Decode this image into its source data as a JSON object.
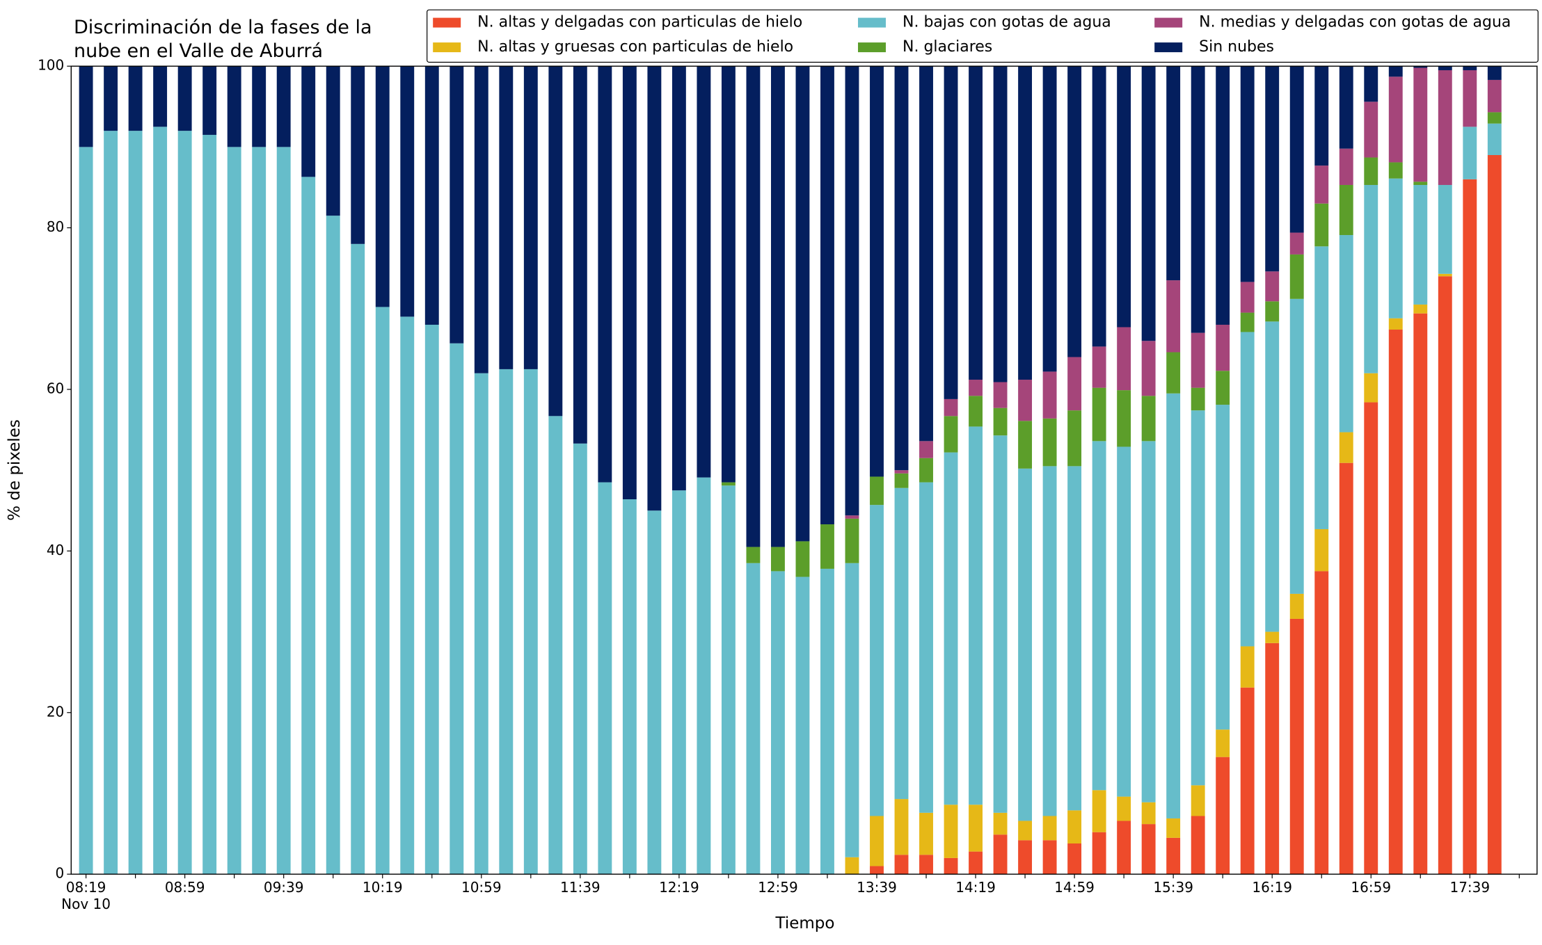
{
  "chart_data": {
    "type": "stacked_bar",
    "title": "Discriminación de la fases de la\nnube en el Valle de Aburrá",
    "x_label": "Tiempo",
    "y_label": "% de pixeles",
    "date_label": "Nov 10",
    "categories": [
      "08:19",
      null,
      null,
      null,
      "08:59",
      null,
      null,
      null,
      "09:39",
      null,
      null,
      null,
      "10:19",
      null,
      null,
      null,
      "10:59",
      null,
      null,
      null,
      "11:39",
      null,
      null,
      null,
      "12:19",
      null,
      null,
      null,
      "12:59",
      null,
      null,
      null,
      "13:39",
      null,
      null,
      null,
      "14:19",
      null,
      null,
      null,
      "14:59",
      null,
      null,
      null,
      "15:39",
      null,
      null,
      null,
      "16:19",
      null,
      null,
      null,
      "16:59",
      null,
      null,
      null,
      "17:39",
      null
    ],
    "series": [
      {
        "name": "N. altas y delgadas con particulas de hielo",
        "color": "#ee4b2b",
        "values": [
          0,
          0,
          0,
          0,
          0,
          0,
          0,
          0,
          0,
          0,
          0,
          0,
          0,
          0,
          0,
          0,
          0,
          0,
          0,
          0,
          0,
          0,
          0,
          0,
          0,
          0,
          0,
          0,
          0,
          0,
          0,
          0,
          1.0,
          2.4,
          2.4,
          2.0,
          2.8,
          4.9,
          4.2,
          4.2,
          3.8,
          5.2,
          6.6,
          6.2,
          4.5,
          7.2,
          14.5,
          23.1,
          28.6,
          31.6,
          37.5,
          50.9,
          58.4,
          67.4,
          69.4,
          74,
          86,
          89
        ]
      },
      {
        "name": "N. altas y gruesas con particulas de hielo",
        "color": "#e6b817",
        "values": [
          0,
          0,
          0,
          0,
          0,
          0,
          0,
          0,
          0,
          0,
          0,
          0,
          0,
          0,
          0,
          0,
          0,
          0,
          0,
          0,
          0,
          0,
          0,
          0,
          0,
          0,
          0,
          0,
          0,
          0,
          0,
          2.1,
          6.2,
          6.9,
          5.2,
          6.6,
          5.8,
          2.7,
          2.4,
          3.0,
          4.1,
          5.2,
          3.0,
          2.7,
          2.4,
          3.8,
          3.4,
          5.1,
          1.4,
          3.1,
          5.2,
          3.8,
          3.6,
          1.4,
          1.1,
          0.3,
          0,
          0
        ]
      },
      {
        "name": "N. bajas con gotas de agua",
        "color": "#66bdca",
        "values": [
          90,
          92,
          92,
          92.5,
          92,
          91.5,
          90,
          90,
          90,
          86.3,
          81.5,
          78,
          70.2,
          69,
          68,
          65.7,
          62,
          62.5,
          62.5,
          56.7,
          53.3,
          48.5,
          46.4,
          45,
          47.5,
          49.1,
          48.1,
          38.5,
          37.5,
          36.8,
          37.8,
          36.4,
          38.5,
          38.5,
          40.9,
          43.6,
          46.8,
          46.7,
          43.6,
          43.3,
          42.6,
          43.2,
          43.3,
          44.7,
          52.6,
          46.4,
          40.2,
          38.9,
          38.4,
          36.5,
          35,
          24.4,
          23.3,
          17.3,
          14.8,
          11.0,
          6.5,
          3.9
        ]
      },
      {
        "name": "N. glaciares",
        "color": "#5c9e2a",
        "values": [
          0,
          0,
          0,
          0,
          0,
          0,
          0,
          0,
          0,
          0,
          0,
          0,
          0,
          0,
          0,
          0,
          0,
          0,
          0,
          0,
          0,
          0,
          0,
          0,
          0,
          0,
          0.4,
          2.0,
          3.0,
          4.4,
          5.5,
          5.5,
          3.5,
          1.8,
          3.0,
          4.5,
          3.8,
          3.4,
          5.9,
          5.9,
          6.9,
          6.6,
          7.0,
          5.6,
          5.1,
          2.8,
          4.2,
          2.4,
          2.5,
          5.5,
          5.3,
          6.2,
          3.4,
          2.0,
          0.4,
          0,
          0,
          1.4
        ]
      },
      {
        "name": "N. medias y delgadas con gotas de agua",
        "color": "#a5457a",
        "values": [
          0,
          0,
          0,
          0,
          0,
          0,
          0,
          0,
          0,
          0,
          0,
          0,
          0,
          0,
          0,
          0,
          0,
          0,
          0,
          0,
          0,
          0,
          0,
          0,
          0,
          0,
          0,
          0,
          0,
          0,
          0,
          0.4,
          0,
          0.4,
          2.1,
          2.1,
          2.0,
          3.2,
          5.1,
          5.8,
          6.6,
          5.1,
          7.8,
          6.8,
          8.9,
          6.8,
          5.7,
          3.8,
          3.7,
          2.7,
          4.7,
          4.5,
          6.9,
          10.6,
          14.1,
          14.2,
          7.0,
          4.0
        ]
      },
      {
        "name": "Sin nubes",
        "color": "#041f5e",
        "values": [
          10,
          8,
          8,
          7.5,
          8,
          8.5,
          10,
          10,
          10,
          13.7,
          18.5,
          22,
          29.8,
          31,
          32,
          34.3,
          38,
          37.5,
          37.5,
          43.3,
          46.7,
          51.5,
          53.6,
          55,
          52.5,
          50.9,
          51.5,
          59.5,
          59.5,
          58.8,
          56.7,
          55.6,
          50.8,
          50,
          46.4,
          41.2,
          38.8,
          39.1,
          38.8,
          37.8,
          36,
          34.7,
          32.3,
          34,
          26.5,
          33,
          32,
          26.7,
          25.4,
          20.6,
          12.3,
          10.2,
          4.4,
          1.3,
          0.2,
          0.5,
          0.5,
          1.7
        ]
      }
    ],
    "ylim": [
      0,
      100
    ],
    "yticks": [
      0,
      20,
      40,
      60,
      80,
      100
    ]
  }
}
